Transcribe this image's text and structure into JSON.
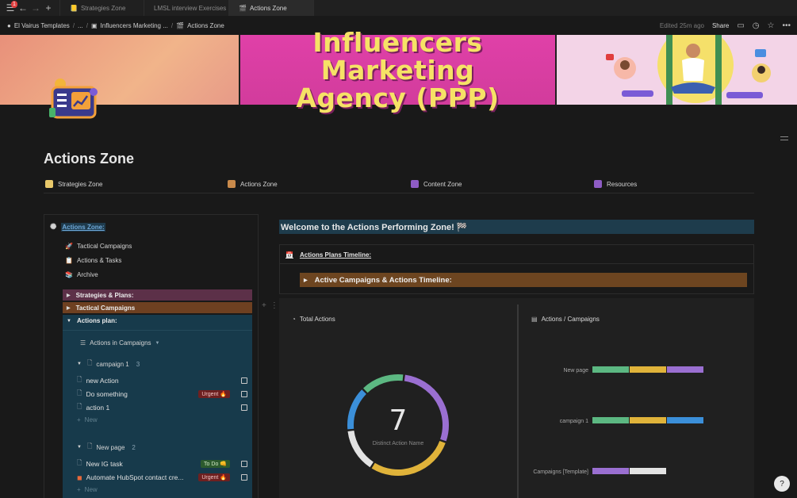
{
  "tabbar": {
    "badge": "1",
    "tabs": [
      {
        "label": "Strategies Zone",
        "icon": "📒"
      },
      {
        "label": "LMSL interview Exercises",
        "icon": ""
      },
      {
        "label": "Actions Zone",
        "icon": "🎬"
      }
    ]
  },
  "topbar": {
    "crumbs": [
      "El Vairus Templates",
      "...",
      "Influencers Marketing ...",
      "Actions Zone"
    ],
    "edited": "Edited 25m ago",
    "share": "Share"
  },
  "banner": {
    "line1": "Influencers Marketing",
    "line2": "Agency (PPP)"
  },
  "page": {
    "title": "Actions Zone"
  },
  "nav": [
    {
      "label": "Strategies Zone",
      "color": "#e8c86a"
    },
    {
      "label": "Actions Zone",
      "color": "#c98a4b"
    },
    {
      "label": "Content Zone",
      "color": "#8e5cc4"
    },
    {
      "label": "Resources",
      "color": "#8e5cc4"
    }
  ],
  "left": {
    "heading": "Actions Zone:",
    "links": [
      "Tactical Campaigns",
      "Actions & Tasks",
      "Archive"
    ],
    "toggles": [
      "Strategies & Plans:",
      "Tactical Campaigns",
      "Actions plan:"
    ],
    "view": "Actions in Campaigns",
    "groups": [
      {
        "name": "campaign 1",
        "count": "3",
        "rows": [
          {
            "title": "new Action",
            "tag": ""
          },
          {
            "title": "Do something",
            "tag": "Urgent 🔥"
          },
          {
            "title": "action 1",
            "tag": ""
          }
        ]
      },
      {
        "name": "New page",
        "count": "2",
        "rows": [
          {
            "title": "New IG task",
            "tag": "To Do 👊"
          },
          {
            "title": "Automate HubSpot contact cre...",
            "tag": "Urgent 🔥"
          }
        ]
      }
    ],
    "new_label": "New"
  },
  "right": {
    "welcome": "Welcome to the Actions Performing Zone! 🏁",
    "timeline_heading": "Actions Plans Timeline:",
    "timeline_toggle": "Active Campaigns & Actions Timeline:"
  },
  "chart_data": [
    {
      "type": "donut",
      "title": "Total Actions",
      "center_value": "7",
      "center_label": "Distinct Action Name",
      "segments": [
        {
          "value": 2,
          "color": "#9a6fd1"
        },
        {
          "value": 2,
          "color": "#e0b33a"
        },
        {
          "value": 1,
          "color": "#e3e3e3"
        },
        {
          "value": 1,
          "color": "#3b8fd9"
        },
        {
          "value": 1,
          "color": "#5cb882"
        }
      ]
    },
    {
      "type": "bar",
      "title": "Actions / Campaigns",
      "categories": [
        "New page",
        "campaign 1",
        "Campaigns [Template]"
      ],
      "series": [
        {
          "values": [
            1,
            1,
            0
          ],
          "color": "#5cb882"
        },
        {
          "values": [
            1,
            1,
            0
          ],
          "color": "#e0b33a"
        },
        {
          "values": [
            1,
            0,
            1
          ],
          "color": "#9a6fd1"
        },
        {
          "values": [
            0,
            1,
            0
          ],
          "color": "#3b8fd9"
        },
        {
          "values": [
            0,
            0,
            1
          ],
          "color": "#e3e3e3"
        }
      ]
    }
  ]
}
